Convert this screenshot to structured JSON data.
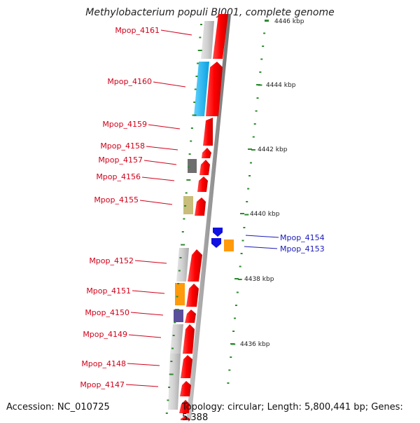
{
  "title": "Methylobacterium populi BJ001, complete genome",
  "footer": {
    "accession": "Accession: NC_010725",
    "topology": "Topology: circular; Length: 5,800,441 bp; Genes: 5,388"
  },
  "scale": {
    "unit": "kbp",
    "ticks": [
      {
        "label": "4446 kbp"
      },
      {
        "label": "4444 kbp"
      },
      {
        "label": "4442 kbp"
      },
      {
        "label": "4440 kbp"
      },
      {
        "label": "4438 kbp"
      },
      {
        "label": "4436 kbp"
      }
    ]
  },
  "genes": [
    {
      "label": "Mpop_4161",
      "strand": "left"
    },
    {
      "label": "Mpop_4160",
      "strand": "left"
    },
    {
      "label": "Mpop_4159",
      "strand": "left"
    },
    {
      "label": "Mpop_4158",
      "strand": "left"
    },
    {
      "label": "Mpop_4157",
      "strand": "left"
    },
    {
      "label": "Mpop_4156",
      "strand": "left"
    },
    {
      "label": "Mpop_4155",
      "strand": "left"
    },
    {
      "label": "Mpop_4154",
      "strand": "right"
    },
    {
      "label": "Mpop_4153",
      "strand": "right"
    },
    {
      "label": "Mpop_4152",
      "strand": "left"
    },
    {
      "label": "Mpop_4151",
      "strand": "left"
    },
    {
      "label": "Mpop_4150",
      "strand": "left"
    },
    {
      "label": "Mpop_4149",
      "strand": "left"
    },
    {
      "label": "Mpop_4148",
      "strand": "left"
    },
    {
      "label": "Mpop_4147",
      "strand": "left"
    }
  ],
  "colors": {
    "label_left": "#d0021b",
    "label_right": "#1a1ab8",
    "cds": "#ff0000",
    "tick": "#2e8b2e",
    "backbone": "#8c8c8c"
  }
}
